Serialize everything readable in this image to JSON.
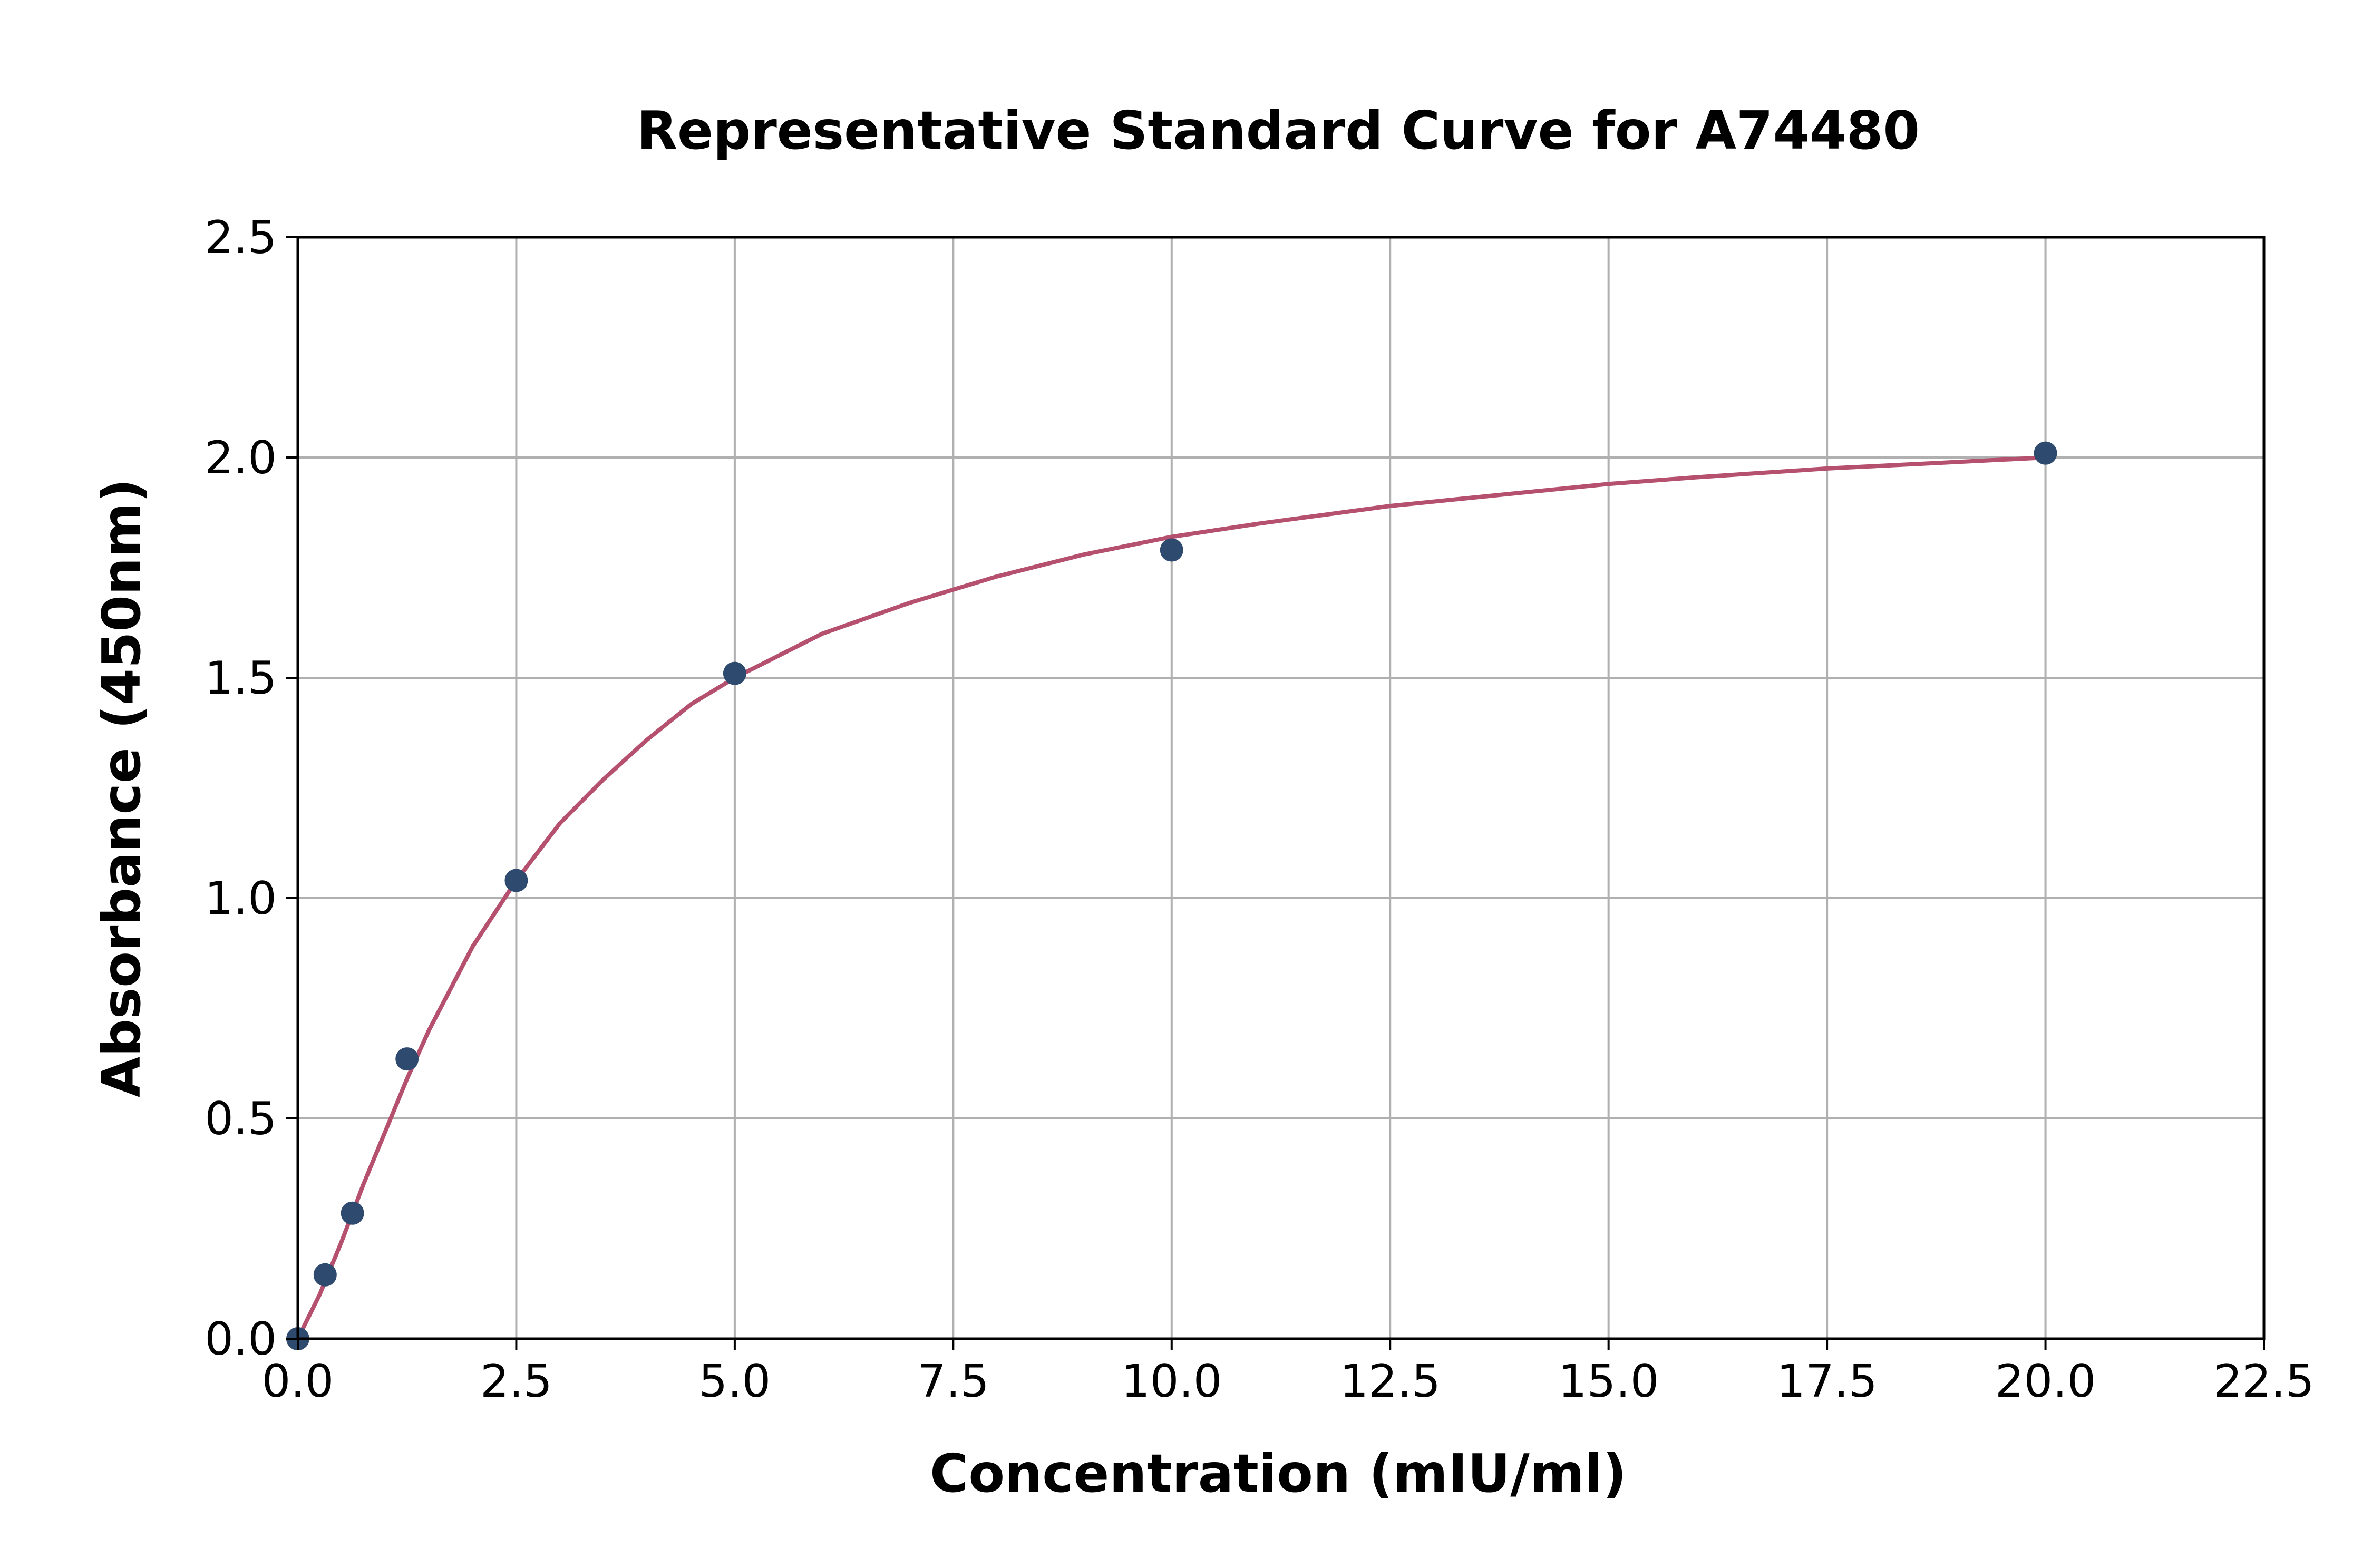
{
  "chart_data": {
    "type": "scatter",
    "title": "Representative Standard Curve for A74480",
    "xlabel": "Concentration (mIU/ml)",
    "ylabel": "Absorbance (450nm)",
    "xlim": [
      0,
      22.5
    ],
    "ylim": [
      0,
      2.5
    ],
    "xticks": [
      "0.0",
      "2.5",
      "5.0",
      "7.5",
      "10.0",
      "12.5",
      "15.0",
      "17.5",
      "20.0",
      "22.5"
    ],
    "yticks": [
      "0.0",
      "0.5",
      "1.0",
      "1.5",
      "2.0",
      "2.5"
    ],
    "grid": true,
    "legend": "none",
    "points": [
      {
        "x": 0,
        "y": 0.0
      },
      {
        "x": 0.3125,
        "y": 0.145
      },
      {
        "x": 0.625,
        "y": 0.285
      },
      {
        "x": 1.25,
        "y": 0.635
      },
      {
        "x": 2.5,
        "y": 1.04
      },
      {
        "x": 5,
        "y": 1.51
      },
      {
        "x": 10,
        "y": 1.79
      },
      {
        "x": 20,
        "y": 2.01
      }
    ],
    "curve": [
      {
        "x": 0,
        "y": 0.0
      },
      {
        "x": 0.25,
        "y": 0.1
      },
      {
        "x": 0.5,
        "y": 0.22
      },
      {
        "x": 0.75,
        "y": 0.35
      },
      {
        "x": 1.0,
        "y": 0.47
      },
      {
        "x": 1.25,
        "y": 0.59
      },
      {
        "x": 1.5,
        "y": 0.7
      },
      {
        "x": 2.0,
        "y": 0.89
      },
      {
        "x": 2.5,
        "y": 1.04
      },
      {
        "x": 3.0,
        "y": 1.17
      },
      {
        "x": 3.5,
        "y": 1.27
      },
      {
        "x": 4.0,
        "y": 1.36
      },
      {
        "x": 4.5,
        "y": 1.44
      },
      {
        "x": 5.0,
        "y": 1.5
      },
      {
        "x": 6.0,
        "y": 1.6
      },
      {
        "x": 7.0,
        "y": 1.67
      },
      {
        "x": 8.0,
        "y": 1.73
      },
      {
        "x": 9.0,
        "y": 1.78
      },
      {
        "x": 10.0,
        "y": 1.82
      },
      {
        "x": 11.0,
        "y": 1.85
      },
      {
        "x": 12.5,
        "y": 1.89
      },
      {
        "x": 14.0,
        "y": 1.92
      },
      {
        "x": 15.0,
        "y": 1.94
      },
      {
        "x": 16.0,
        "y": 1.955
      },
      {
        "x": 17.5,
        "y": 1.975
      },
      {
        "x": 19.0,
        "y": 1.99
      },
      {
        "x": 20.0,
        "y": 2.0
      }
    ],
    "colors": {
      "points": "#2e4a6e",
      "curve": "#b5506f",
      "grid": "#b0b0b0",
      "axes": "#000000"
    }
  }
}
